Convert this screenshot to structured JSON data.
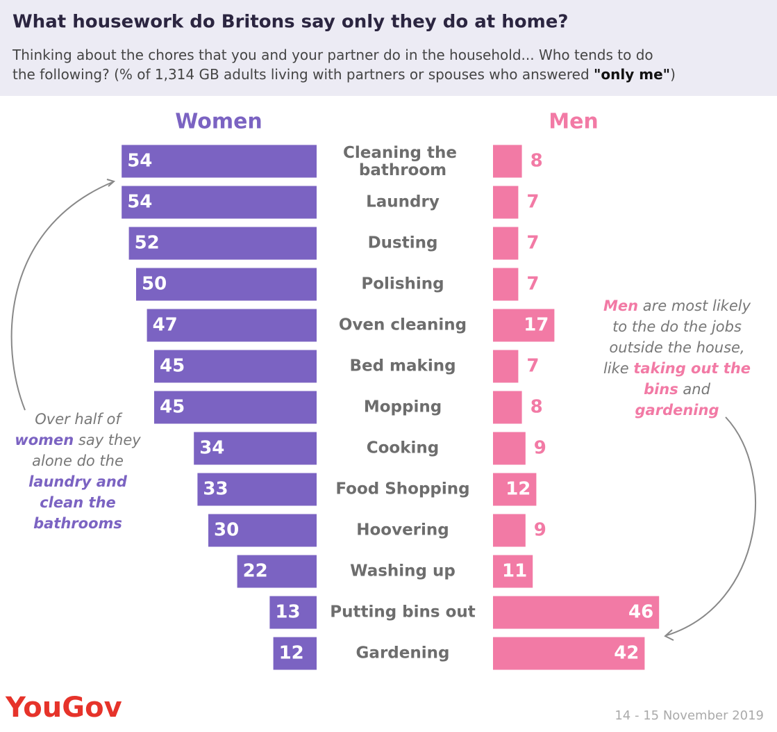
{
  "chart_data": {
    "type": "butterfly",
    "title": "What housework do Britons say only they do at home?",
    "subtitle": [
      "Thinking about the chores that you and your partner do in the household... Who tends to do the following? (% of 1,314 GB adults living with partners or spouses who answered ",
      "\"only me\"",
      ")"
    ],
    "categories": [
      "Cleaning the bathroom",
      "Laundry",
      "Dusting",
      "Polishing",
      "Oven cleaning",
      "Bed making",
      "Mopping",
      "Cooking",
      "Food Shopping",
      "Hoovering",
      "Washing up",
      "Putting bins out",
      "Gardening"
    ],
    "series": [
      {
        "name": "Women",
        "color": "#7b63c2",
        "values": [
          54,
          54,
          52,
          50,
          47,
          45,
          45,
          34,
          33,
          30,
          22,
          13,
          12
        ]
      },
      {
        "name": "Men",
        "color": "#f27aa5",
        "values": [
          8,
          7,
          7,
          7,
          17,
          7,
          8,
          9,
          12,
          9,
          11,
          46,
          42
        ]
      }
    ],
    "annotations": [
      {
        "color": "#7b63c2",
        "runs": [
          {
            "text": "Over half of ",
            "emphasis": false
          },
          {
            "text": "women",
            "emphasis": true
          },
          {
            "text": " say they alone do the ",
            "emphasis": false
          },
          {
            "text": "laundry and clean the bathrooms",
            "emphasis": true
          }
        ]
      },
      {
        "color": "#f27aa5",
        "runs": [
          {
            "text": "Men",
            "emphasis": true
          },
          {
            "text": " are most likely to the do the jobs outside the house, like ",
            "emphasis": false
          },
          {
            "text": "taking out the bins",
            "emphasis": true
          },
          {
            "text": " and ",
            "emphasis": false
          },
          {
            "text": "gardening",
            "emphasis": true
          }
        ]
      }
    ],
    "source": "YouGov",
    "date": "14 - 15 November 2019"
  }
}
